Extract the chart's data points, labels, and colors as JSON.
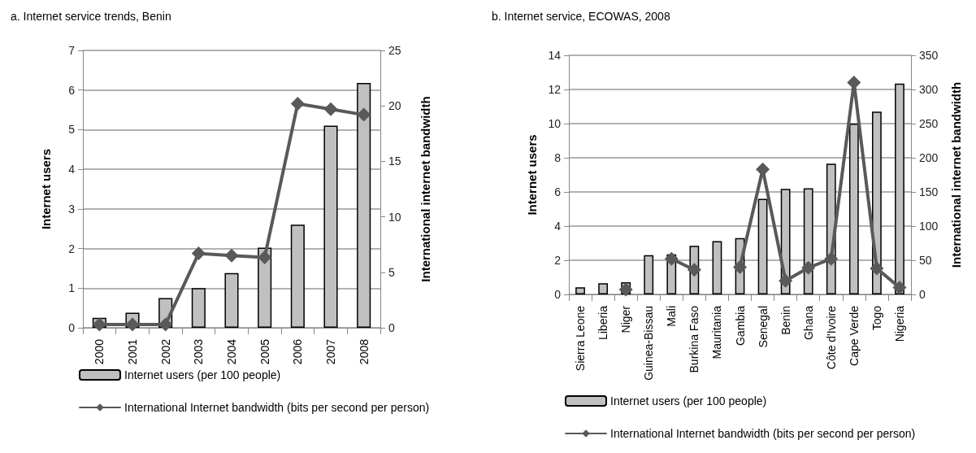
{
  "chart_data": [
    {
      "type": "bar",
      "title": "a. Internet service trends, Benin",
      "ylabel": "Internet users",
      "y2label": "International internet bandwidth",
      "categories": [
        "2000",
        "2001",
        "2002",
        "2003",
        "2004",
        "2005",
        "2006",
        "2007",
        "2008"
      ],
      "series": [
        {
          "name": "Internet users (per 100 people)",
          "color": "#c0c0c0",
          "values": [
            0.25,
            0.38,
            0.75,
            1.0,
            1.38,
            2.02,
            2.6,
            5.1,
            6.18
          ]
        },
        {
          "name": "International Internet bandwidth (bits per second per person)",
          "type": "line",
          "axis": "y2",
          "color": "#595959",
          "values": [
            0.3,
            0.3,
            0.3,
            6.7,
            6.5,
            6.35,
            20.2,
            19.7,
            19.2
          ]
        }
      ],
      "ylim": [
        0,
        7
      ],
      "yticks": [
        0,
        1,
        2,
        3,
        4,
        5,
        6,
        7
      ],
      "y2lim": [
        0,
        25
      ],
      "y2ticks": [
        0,
        5,
        10,
        15,
        20,
        25
      ],
      "grid": "y",
      "legend": "bottom",
      "marker": "diamond",
      "line_style": "solid"
    },
    {
      "type": "bar",
      "title": "b. Internet service, ECOWAS, 2008",
      "ylabel": "Internet users",
      "y2label": "International internet bandwidth",
      "categories": [
        "Sierra Leone",
        "Liberia",
        "Niger",
        "Guinea-Bissau",
        "Mali",
        "Burkina Faso",
        "Mauritania",
        "Gambia",
        "Senegal",
        "Benin",
        "Ghana",
        "Côte d'Ivoire",
        "Cape Verde",
        "Togo",
        "Nigeria"
      ],
      "series": [
        {
          "name": "Internet users (per 100 people)",
          "color": "#c0c0c0",
          "values": [
            0.42,
            0.65,
            0.72,
            2.3,
            2.35,
            2.85,
            3.12,
            3.3,
            5.6,
            6.18,
            6.22,
            7.65,
            10.0,
            10.7,
            12.35
          ]
        },
        {
          "name": "International Internet bandwidth (bits per second per person)",
          "type": "line",
          "axis": "y2",
          "color": "#595959",
          "values": [
            null,
            null,
            7,
            null,
            52,
            36,
            null,
            40,
            183,
            20,
            39,
            52,
            310,
            38,
            10
          ]
        }
      ],
      "ylim": [
        0,
        14
      ],
      "yticks": [
        0,
        2,
        4,
        6,
        8,
        10,
        12,
        14
      ],
      "y2lim": [
        0,
        350
      ],
      "y2ticks": [
        0,
        50,
        100,
        150,
        200,
        250,
        300,
        350
      ],
      "grid": "y",
      "legend": "bottom",
      "marker": "diamond",
      "line_style": "solid"
    }
  ]
}
